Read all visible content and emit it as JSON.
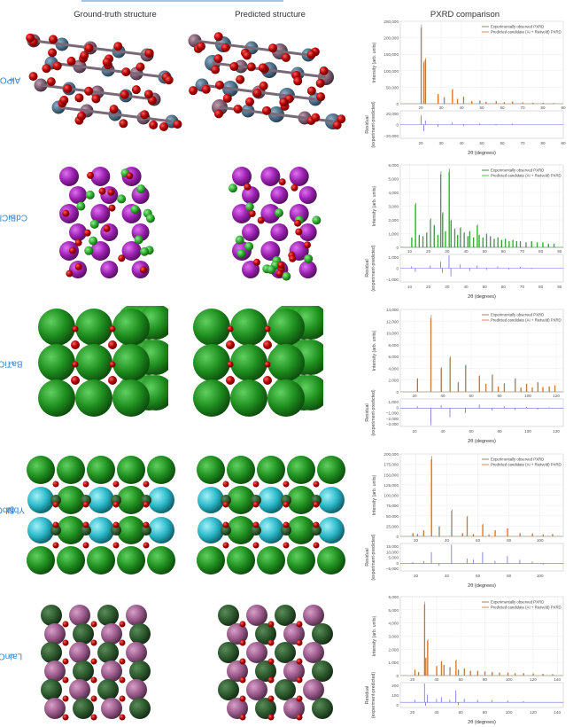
{
  "header": {
    "ground_truth": "Ground-truth structure",
    "predicted": "Predicted structure",
    "pxrd": "PXRD comparison"
  },
  "rows": [
    {
      "formula_base": "AlPO",
      "formula_sub": "4",
      "formula_rest": ""
    },
    {
      "formula_base": "CdBiClO",
      "formula_sub": "2",
      "formula_rest": ""
    },
    {
      "formula_base": "BaTiO",
      "formula_sub": "3",
      "formula_rest": ""
    },
    {
      "formula_base": "Sr",
      "formula_sub": "2",
      "formula_rest": "YbNbO",
      "formula_sub2": "6"
    },
    {
      "formula_base": "LaInO",
      "formula_sub": "3",
      "formula_rest": ""
    }
  ],
  "colors": {
    "observed_line": "#8a7a60",
    "predicted_line": "#e08030",
    "residual": "#6f6fd6",
    "green_obs": "#3a7a3a",
    "green_pred": "#3cc03c"
  },
  "chart_data": [
    {
      "type": "line",
      "legend": [
        "Experimentally observed PXRD",
        "Predicted candidate (AI + Rietveld) PXRD"
      ],
      "ylabel": "Intensity (arb. units)",
      "yticks": [
        "250,000",
        "200,000",
        "150,000",
        "100,000",
        "50,000",
        "0"
      ],
      "ylim": [
        0,
        250000
      ],
      "xlim": [
        10,
        90
      ],
      "xticks": [
        "20",
        "30",
        "40",
        "50",
        "60",
        "70",
        "80",
        "90"
      ],
      "residual_label": [
        "Residual",
        "(experiment-predicted)"
      ],
      "res_yticks": [
        "20,000",
        "0",
        "−20,000"
      ],
      "res_ylim": [
        -30000,
        30000
      ],
      "xlabel": "2θ (degrees)",
      "peaks": [
        [
          20.2,
          240000
        ],
        [
          21.5,
          130000
        ],
        [
          22.3,
          140000
        ],
        [
          28.5,
          30000
        ],
        [
          31.5,
          20000
        ],
        [
          35.5,
          45000
        ],
        [
          38,
          15000
        ],
        [
          41,
          22000
        ],
        [
          45,
          8000
        ],
        [
          49,
          10000
        ],
        [
          52,
          6000
        ],
        [
          57,
          8000
        ],
        [
          61,
          5000
        ],
        [
          65,
          7000
        ],
        [
          70,
          4000
        ],
        [
          75,
          3000
        ],
        [
          80,
          3000
        ],
        [
          85,
          2000
        ]
      ],
      "residuals": [
        [
          20.2,
          20000
        ],
        [
          21.5,
          -14000
        ],
        [
          22.3,
          9000
        ],
        [
          28.5,
          -5000
        ],
        [
          35.5,
          4000
        ],
        [
          41,
          -3000
        ],
        [
          49,
          2500
        ],
        [
          57,
          -2000
        ],
        [
          65,
          2000
        ]
      ]
    },
    {
      "type": "line",
      "legend": [
        "Experimentally observed PXRD",
        "Predicted candidate (AI + Rietveld) PXRD"
      ],
      "ylabel": "Intensity (arb. units)",
      "yticks": [
        "6,000",
        "5,000",
        "4,000",
        "3,000",
        "2,000",
        "1,000",
        "0"
      ],
      "ylim": [
        0,
        6500
      ],
      "xlim": [
        5,
        92
      ],
      "xticks": [
        "10",
        "20",
        "30",
        "40",
        "50",
        "60",
        "70",
        "80",
        "90"
      ],
      "residual_label": [
        "Residual",
        "(experiment-predicted)"
      ],
      "res_yticks": [
        "1,000",
        "0",
        "−1,000"
      ],
      "res_ylim": [
        -1500,
        1500
      ],
      "xlabel": "2θ (degrees)",
      "peaks": [
        [
          11,
          800
        ],
        [
          13,
          3500
        ],
        [
          15,
          1000
        ],
        [
          17,
          900
        ],
        [
          19,
          1200
        ],
        [
          21,
          2300
        ],
        [
          23,
          1800
        ],
        [
          25,
          1000
        ],
        [
          26.5,
          6000
        ],
        [
          27.5,
          2800
        ],
        [
          29,
          1300
        ],
        [
          31,
          6200
        ],
        [
          32,
          2200
        ],
        [
          34,
          1500
        ],
        [
          35.5,
          1000
        ],
        [
          37,
          1600
        ],
        [
          39,
          1200
        ],
        [
          41,
          900
        ],
        [
          42,
          1300
        ],
        [
          44,
          800
        ],
        [
          46,
          1800
        ],
        [
          47,
          1000
        ],
        [
          49,
          800
        ],
        [
          51,
          1100
        ],
        [
          53,
          900
        ],
        [
          55,
          700
        ],
        [
          57,
          800
        ],
        [
          59,
          600
        ],
        [
          61,
          700
        ],
        [
          63,
          500
        ],
        [
          65,
          600
        ],
        [
          67,
          500
        ],
        [
          69,
          500
        ],
        [
          72,
          400
        ],
        [
          75,
          500
        ],
        [
          78,
          400
        ],
        [
          81,
          400
        ],
        [
          84,
          300
        ],
        [
          87,
          300
        ]
      ],
      "residuals": [
        [
          11,
          200
        ],
        [
          13,
          -400
        ],
        [
          21,
          300
        ],
        [
          26.5,
          700
        ],
        [
          27.5,
          -500
        ],
        [
          31,
          1400
        ],
        [
          32,
          -900
        ],
        [
          37,
          400
        ],
        [
          42,
          -300
        ],
        [
          46,
          300
        ],
        [
          51,
          -200
        ],
        [
          57,
          200
        ],
        [
          63,
          -150
        ],
        [
          69,
          150
        ],
        [
          75,
          -100
        ]
      ]
    },
    {
      "type": "line",
      "legend": [
        "Experimentally observed PXRD",
        "Predicted candidate (AI + Rietveld) PXRD"
      ],
      "ylabel": "Intensity (arb. units)",
      "yticks": [
        "14,000",
        "12,000",
        "10,000",
        "8,000",
        "6,000",
        "4,000",
        "2,000",
        "0"
      ],
      "ylim": [
        0,
        15000
      ],
      "xlim": [
        10,
        125
      ],
      "xticks": [
        "20",
        "40",
        "60",
        "80",
        "100",
        "120"
      ],
      "residual_label": [
        "Residual",
        "(experiment-predicted)"
      ],
      "res_yticks": [
        "1,000",
        "0",
        "−1,000",
        "−2,000",
        "−3,000"
      ],
      "res_ylim": [
        -3000,
        1500
      ],
      "xlabel": "2θ (degrees)",
      "peaks": [
        [
          22,
          2500
        ],
        [
          31.5,
          14000
        ],
        [
          38.8,
          4500
        ],
        [
          45,
          6500
        ],
        [
          50.8,
          1800
        ],
        [
          56,
          5000
        ],
        [
          65.7,
          3000
        ],
        [
          70.3,
          1500
        ],
        [
          74.8,
          3200
        ],
        [
          79,
          1000
        ],
        [
          83.3,
          1600
        ],
        [
          91,
          2500
        ],
        [
          95,
          800
        ],
        [
          99,
          1500
        ],
        [
          103,
          800
        ],
        [
          107,
          1800
        ],
        [
          110.5,
          900
        ],
        [
          115,
          1000
        ],
        [
          119,
          1200
        ]
      ],
      "residuals": [
        [
          22,
          300
        ],
        [
          31.5,
          -2800
        ],
        [
          38.8,
          500
        ],
        [
          45,
          -1500
        ],
        [
          56,
          -800
        ],
        [
          65.7,
          600
        ],
        [
          74.8,
          -400
        ],
        [
          83.3,
          300
        ],
        [
          91,
          -300
        ],
        [
          99,
          200
        ],
        [
          107,
          -200
        ],
        [
          115,
          150
        ]
      ]
    },
    {
      "type": "line",
      "legend": [
        "Experimentally observed PXRD",
        "Predicted candidate (AI + Rietveld) PXRD"
      ],
      "ylabel": "Intensity (arb. units)",
      "yticks": [
        "200,000",
        "175,000",
        "150,000",
        "125,000",
        "100,000",
        "75,000",
        "50,000",
        "25,000",
        "0"
      ],
      "ylim": [
        0,
        200000
      ],
      "xlim": [
        10,
        115
      ],
      "xticks": [
        "20",
        "40",
        "60",
        "80",
        "100"
      ],
      "residual_label": [
        "Residual",
        "(experiment-predicted)"
      ],
      "res_yticks": [
        "15,000",
        "10,000",
        "5,000",
        "0",
        "−5,000"
      ],
      "res_ylim": [
        -6000,
        16000
      ],
      "xlabel": "2θ (degrees)",
      "peaks": [
        [
          18,
          8000
        ],
        [
          21,
          6000
        ],
        [
          25,
          15000
        ],
        [
          30,
          195000
        ],
        [
          35,
          25000
        ],
        [
          43,
          65000
        ],
        [
          50,
          8000
        ],
        [
          53,
          50000
        ],
        [
          57,
          6000
        ],
        [
          63,
          30000
        ],
        [
          67,
          5000
        ],
        [
          71,
          15000
        ],
        [
          79,
          20000
        ],
        [
          87,
          8000
        ],
        [
          95,
          7000
        ],
        [
          102,
          5000
        ],
        [
          108,
          6000
        ]
      ],
      "residuals": [
        [
          18,
          1000
        ],
        [
          25,
          2000
        ],
        [
          30,
          9000
        ],
        [
          35,
          -2000
        ],
        [
          43,
          15000
        ],
        [
          53,
          4000
        ],
        [
          57,
          3000
        ],
        [
          63,
          9000
        ],
        [
          71,
          2000
        ],
        [
          79,
          6000
        ],
        [
          87,
          3000
        ],
        [
          95,
          1500
        ],
        [
          102,
          -1000
        ]
      ]
    },
    {
      "type": "line",
      "legend": [
        "Experimentally observed PXRD",
        "Predicted candidate (AI + Rietveld) PXRD"
      ],
      "ylabel": "Intensity (arb. units)",
      "yticks": [
        "6,000",
        "5,000",
        "4,000",
        "3,000",
        "2,000",
        "1,000",
        "0"
      ],
      "ylim": [
        0,
        6500
      ],
      "xlim": [
        10,
        145
      ],
      "xticks": [
        "20",
        "40",
        "60",
        "80",
        "100",
        "120",
        "140"
      ],
      "residual_label": [
        "Residual",
        "(experiment-predicted)"
      ],
      "res_yticks": [
        "200",
        "100",
        "0"
      ],
      "res_ylim": [
        -60,
        230
      ],
      "xlabel": "2θ (degrees)",
      "peaks": [
        [
          22,
          500
        ],
        [
          25,
          300
        ],
        [
          30,
          6100
        ],
        [
          31,
          1500
        ],
        [
          32.5,
          3000
        ],
        [
          40,
          800
        ],
        [
          44,
          1200
        ],
        [
          46,
          900
        ],
        [
          51,
          700
        ],
        [
          56,
          1300
        ],
        [
          58,
          500
        ],
        [
          63,
          600
        ],
        [
          68,
          400
        ],
        [
          74,
          400
        ],
        [
          80,
          350
        ],
        [
          86,
          300
        ],
        [
          92,
          250
        ],
        [
          99,
          250
        ],
        [
          105,
          200
        ],
        [
          112,
          200
        ],
        [
          120,
          180
        ],
        [
          128,
          150
        ],
        [
          136,
          120
        ]
      ],
      "residuals": [
        [
          22,
          30
        ],
        [
          30,
          220
        ],
        [
          31,
          -40
        ],
        [
          32.5,
          90
        ],
        [
          40,
          40
        ],
        [
          44,
          60
        ],
        [
          51,
          30
        ],
        [
          56,
          140
        ],
        [
          58,
          -30
        ],
        [
          63,
          40
        ],
        [
          74,
          30
        ],
        [
          86,
          25
        ],
        [
          99,
          20
        ],
        [
          112,
          15
        ]
      ]
    }
  ]
}
